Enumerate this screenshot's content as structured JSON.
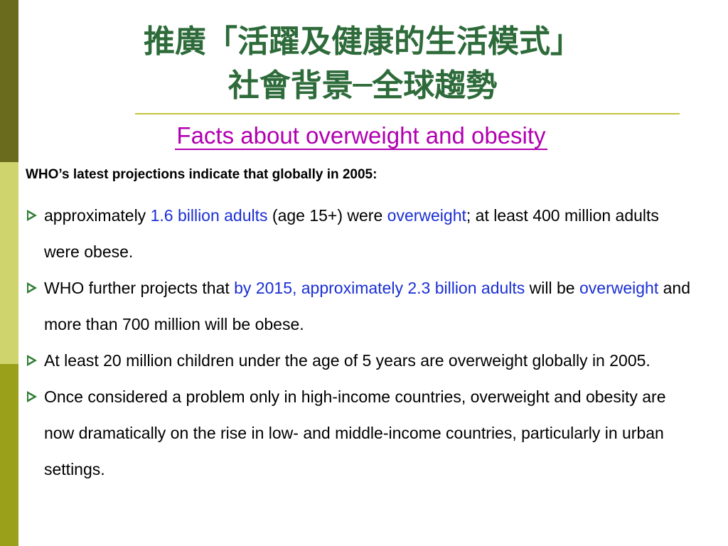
{
  "title": {
    "line1": "推廣「活躍及健康的生活模式」",
    "line2": "社會背景─全球趨勢"
  },
  "subtitle": "Facts about overweight and obesity",
  "intro": "WHO’s latest projections indicate that globally in 2005:",
  "bullets": [
    {
      "p1": "approximately ",
      "h1": "1.6 billion adults",
      "p2": " (age 15+) were ",
      "h2": "overweight",
      "p3": "; at least 400 million adults were obese."
    },
    {
      "p1": "WHO further projects that ",
      "h1": "by 2015, approximately 2.3 billion adults",
      "p2": " will be ",
      "h2": "overweight",
      "p3": " and more than 700 million will be obese."
    },
    {
      "text": "At least 20 million children under the age of 5 years are overweight globally in 2005."
    },
    {
      "text": "Once considered a problem only in high-income countries, overweight and obesity are now dramatically on the rise in low- and middle-income countries, particularly in urban settings."
    }
  ],
  "colors": {
    "title": "#2e6b3a",
    "subtitle": "#b000b0",
    "highlight": "#1a2fd4",
    "rule": "#c6c43a",
    "sidebar_top": "#6b6b1e",
    "sidebar_mid": "#cfd46c",
    "sidebar_bottom": "#9aa01a"
  }
}
